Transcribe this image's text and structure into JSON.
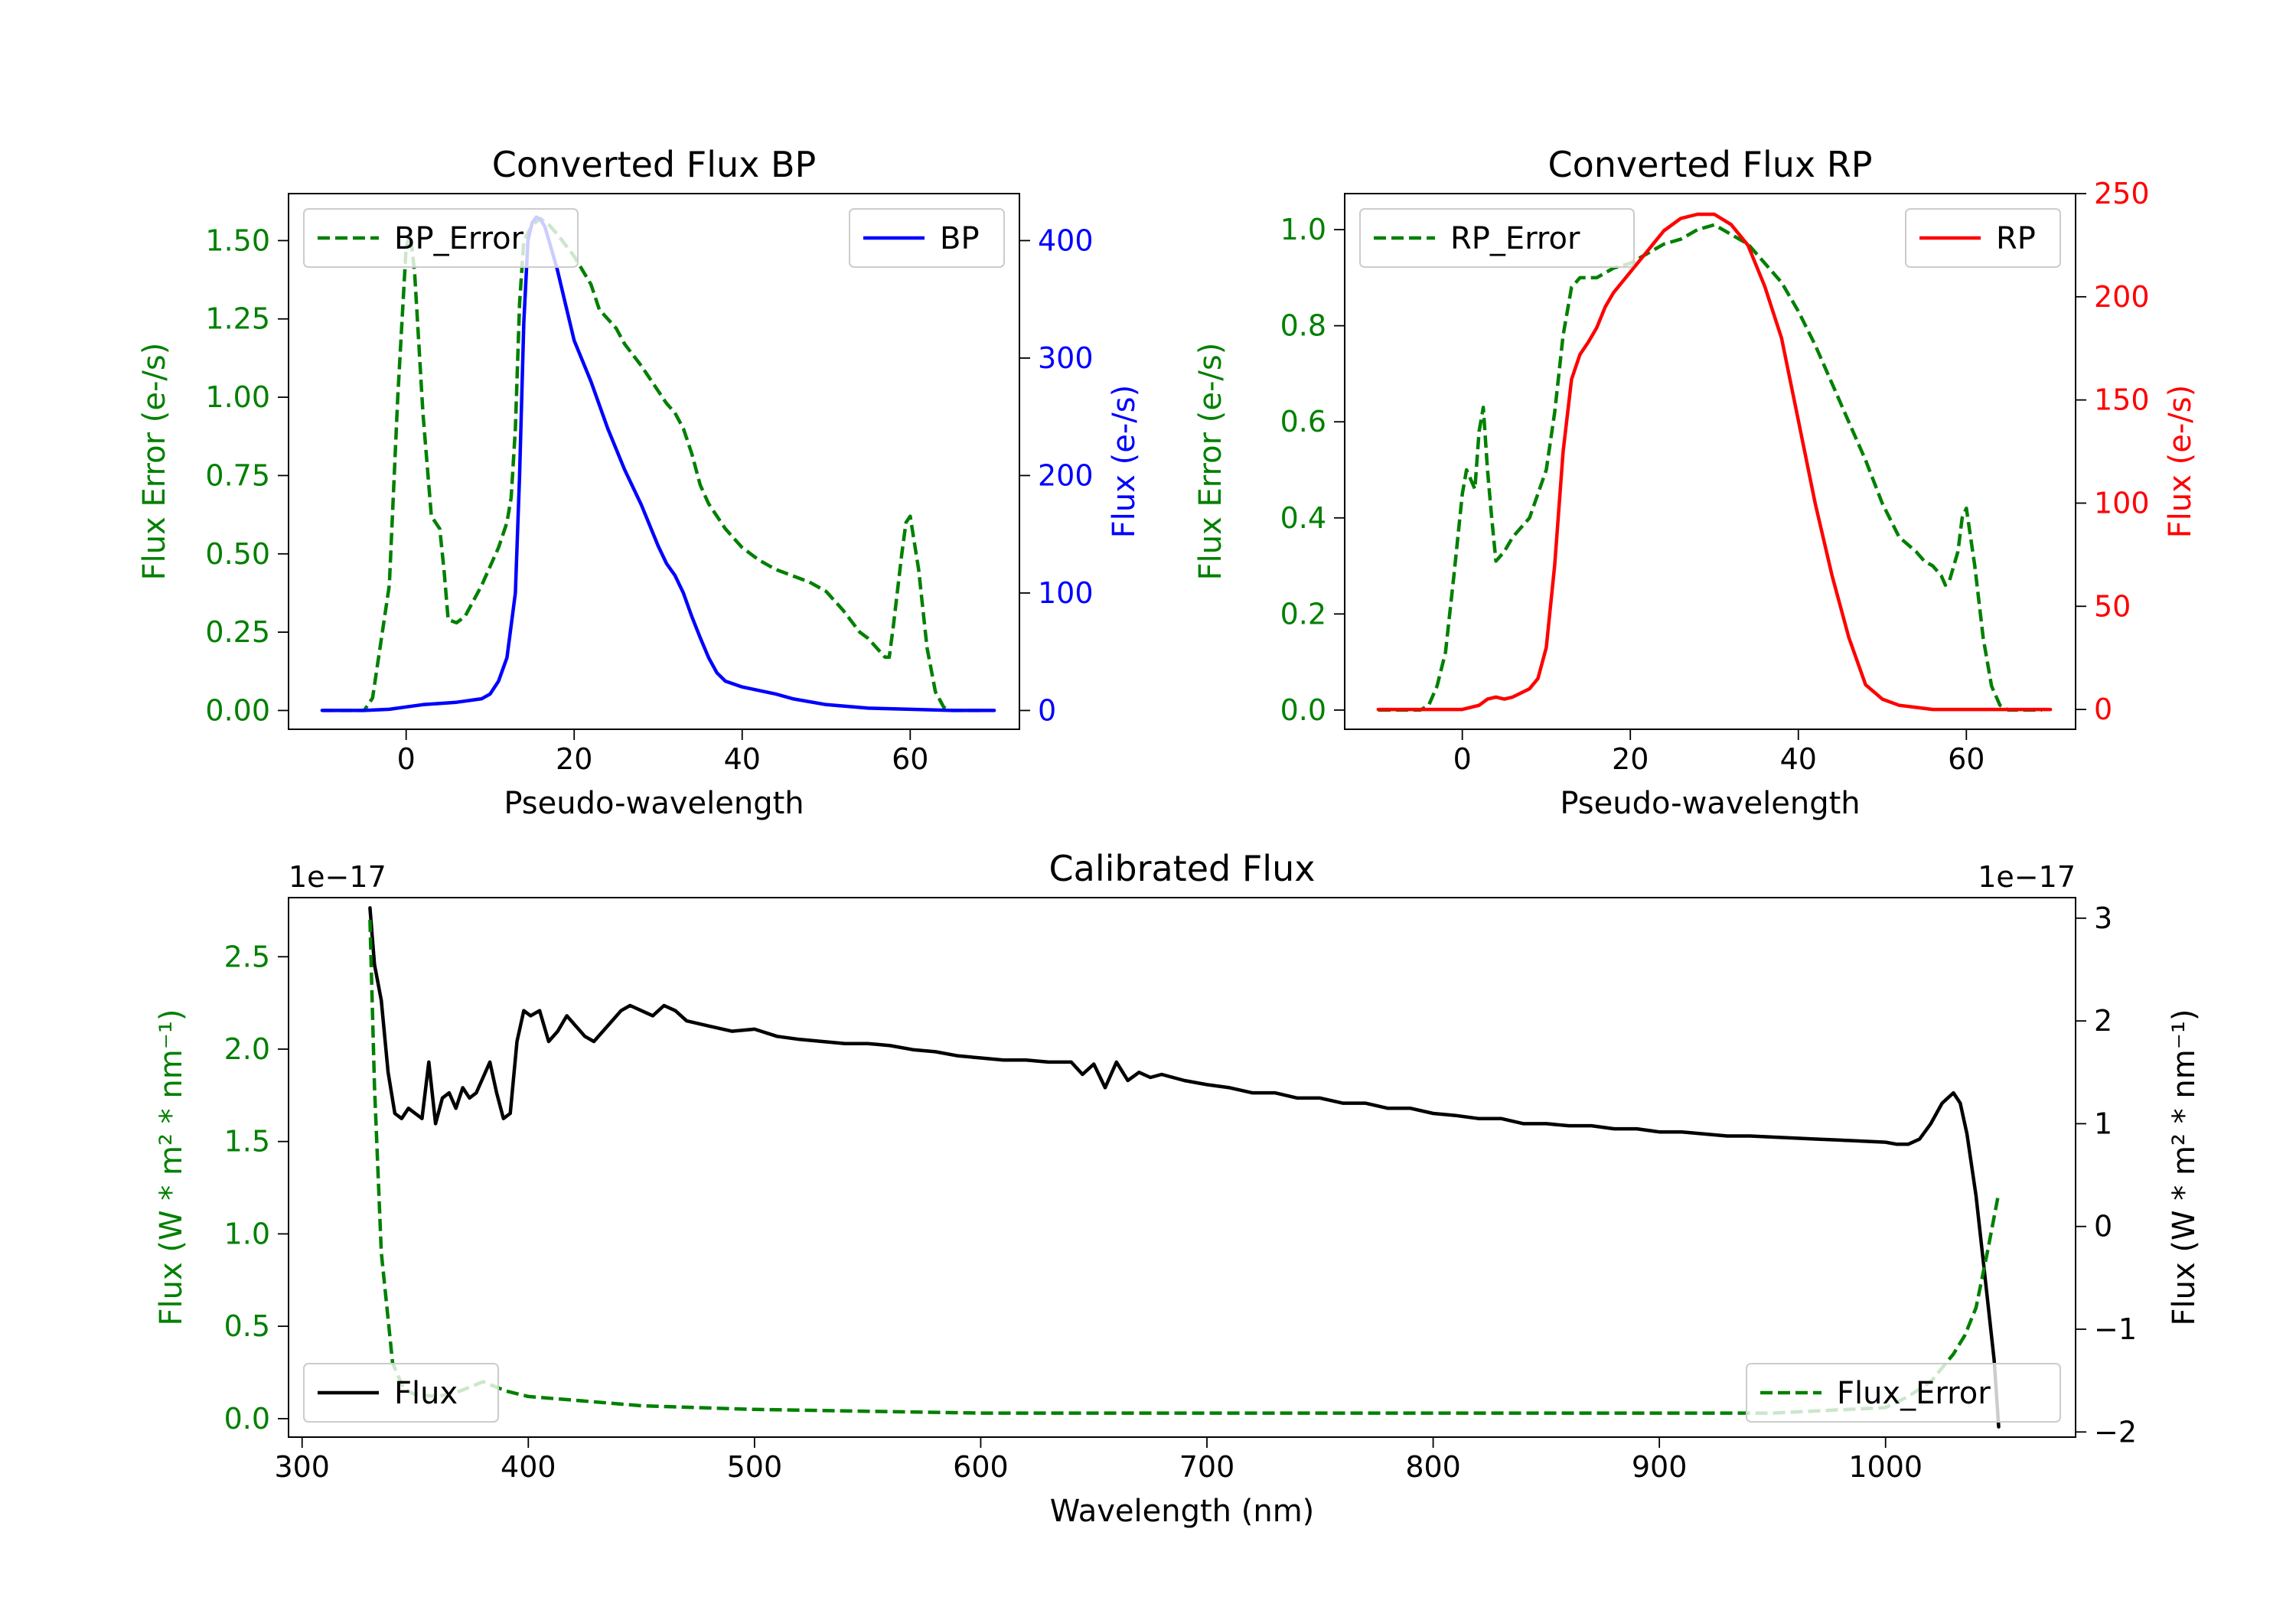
{
  "chart_data": [
    {
      "type": "line",
      "id": "bp",
      "title": "Converted Flux BP",
      "xlabel": "Pseudo-wavelength",
      "xlim": [
        -14,
        73
      ],
      "xticks": [
        0,
        20,
        40,
        60
      ],
      "left_axis": {
        "label": "Flux Error (e-/s)",
        "color": "#008000",
        "lim": [
          -0.06,
          1.65
        ],
        "ticks": [
          0.0,
          0.25,
          0.5,
          0.75,
          1.0,
          1.25,
          1.5
        ],
        "tick_labels": [
          "0.00",
          "0.25",
          "0.50",
          "0.75",
          "1.00",
          "1.25",
          "1.50"
        ]
      },
      "right_axis": {
        "label": "Flux (e-/s)",
        "color": "#0000ff",
        "lim": [
          -16,
          440
        ],
        "ticks": [
          0,
          100,
          200,
          300,
          400
        ],
        "tick_labels": [
          "0",
          "100",
          "200",
          "300",
          "400"
        ]
      },
      "series": [
        {
          "name": "BP_Error",
          "axis": "left",
          "color": "#008000",
          "dashed": true,
          "legend": "top-left",
          "x": [
            -10,
            -5,
            -4,
            -2,
            -1,
            0,
            0.5,
            1,
            2,
            3,
            4,
            4.5,
            5,
            6,
            7,
            8,
            9,
            10,
            11,
            12,
            12.5,
            13,
            13.5,
            14,
            15,
            16,
            17,
            18,
            20,
            22,
            23,
            25,
            26,
            28,
            30,
            31,
            32,
            33,
            34,
            35,
            36,
            38,
            40,
            42,
            44,
            46,
            48,
            50,
            52,
            54,
            55,
            56,
            57,
            57.5,
            58,
            59,
            59.5,
            60,
            61,
            62,
            63,
            64,
            65,
            69
          ],
          "values": [
            0,
            0,
            0.04,
            0.4,
            1.0,
            1.48,
            1.52,
            1.4,
            0.95,
            0.62,
            0.58,
            0.45,
            0.29,
            0.28,
            0.3,
            0.35,
            0.4,
            0.46,
            0.52,
            0.6,
            0.68,
            0.9,
            1.3,
            1.5,
            1.55,
            1.57,
            1.55,
            1.52,
            1.45,
            1.36,
            1.28,
            1.22,
            1.17,
            1.1,
            1.02,
            0.98,
            0.95,
            0.9,
            0.82,
            0.72,
            0.66,
            0.58,
            0.52,
            0.48,
            0.45,
            0.43,
            0.41,
            0.38,
            0.32,
            0.25,
            0.23,
            0.2,
            0.17,
            0.17,
            0.27,
            0.5,
            0.6,
            0.62,
            0.45,
            0.2,
            0.06,
            0.01,
            0,
            0
          ]
        },
        {
          "name": "BP",
          "axis": "right",
          "color": "#0000ff",
          "dashed": false,
          "legend": "top-right",
          "x": [
            -10,
            -5,
            -2,
            0,
            2,
            4,
            6,
            7,
            8,
            9,
            10,
            11,
            12,
            13,
            13.5,
            14,
            14.5,
            15,
            15.5,
            16,
            16.5,
            17,
            18,
            19,
            20,
            22,
            24,
            26,
            28,
            30,
            31,
            32,
            33,
            34,
            35,
            36,
            37,
            38,
            40,
            42,
            44,
            46,
            50,
            55,
            60,
            65,
            70
          ],
          "values": [
            0,
            0,
            1,
            3,
            5,
            6,
            7,
            8,
            9,
            10,
            14,
            25,
            45,
            100,
            200,
            330,
            400,
            415,
            420,
            418,
            412,
            400,
            375,
            345,
            315,
            280,
            240,
            205,
            175,
            140,
            125,
            115,
            100,
            80,
            62,
            45,
            32,
            25,
            20,
            17,
            14,
            10,
            5,
            2,
            1,
            0,
            0
          ]
        }
      ]
    },
    {
      "type": "line",
      "id": "rp",
      "title": "Converted Flux RP",
      "xlabel": "Pseudo-wavelength",
      "xlim": [
        -14,
        73
      ],
      "xticks": [
        0,
        20,
        40,
        60
      ],
      "left_axis": {
        "label": "Flux Error (e-/s)",
        "color": "#008000",
        "lim": [
          -0.04,
          1.075
        ],
        "ticks": [
          0.0,
          0.2,
          0.4,
          0.6,
          0.8,
          1.0
        ],
        "tick_labels": [
          "0.0",
          "0.2",
          "0.4",
          "0.6",
          "0.8",
          "1.0"
        ]
      },
      "right_axis": {
        "label": "Flux (e-/s)",
        "color": "#ff0000",
        "lim": [
          -9.6,
          250
        ],
        "ticks": [
          0,
          50,
          100,
          150,
          200,
          250
        ],
        "tick_labels": [
          "0",
          "50",
          "100",
          "150",
          "200",
          "250"
        ]
      },
      "series": [
        {
          "name": "RP_Error",
          "axis": "left",
          "color": "#008000",
          "dashed": true,
          "legend": "top-left",
          "x": [
            -10,
            -5,
            -4,
            -3,
            -2,
            -1,
            0,
            0.5,
            1,
            1.5,
            2,
            2.5,
            3,
            3.5,
            4,
            5,
            6,
            8,
            10,
            11,
            12,
            13,
            14,
            16,
            18,
            20,
            22,
            24,
            26,
            28,
            30,
            31,
            32,
            34,
            36,
            38,
            40,
            42,
            44,
            46,
            48,
            50,
            52,
            54,
            55,
            56,
            57,
            57.5,
            58,
            59,
            59.5,
            60,
            61,
            62,
            63,
            64,
            65,
            69
          ],
          "values": [
            0,
            0,
            0.01,
            0.05,
            0.12,
            0.28,
            0.45,
            0.5,
            0.48,
            0.46,
            0.58,
            0.63,
            0.5,
            0.4,
            0.31,
            0.33,
            0.36,
            0.4,
            0.5,
            0.62,
            0.78,
            0.88,
            0.9,
            0.9,
            0.92,
            0.93,
            0.95,
            0.97,
            0.98,
            1.0,
            1.01,
            1.0,
            0.99,
            0.97,
            0.93,
            0.89,
            0.83,
            0.76,
            0.68,
            0.6,
            0.52,
            0.43,
            0.36,
            0.33,
            0.31,
            0.3,
            0.28,
            0.26,
            0.27,
            0.33,
            0.4,
            0.42,
            0.3,
            0.15,
            0.05,
            0.01,
            0,
            0
          ]
        },
        {
          "name": "RP",
          "axis": "right",
          "color": "#ff0000",
          "dashed": false,
          "legend": "top-right",
          "x": [
            -10,
            -5,
            -2,
            0,
            2,
            3,
            4,
            5,
            6,
            7,
            8,
            9,
            10,
            11,
            12,
            13,
            14,
            15,
            16,
            17,
            18,
            20,
            22,
            24,
            26,
            28,
            30,
            32,
            34,
            36,
            38,
            40,
            42,
            44,
            46,
            48,
            50,
            52,
            54,
            56,
            58,
            60,
            65,
            70
          ],
          "values": [
            0,
            0,
            0,
            0,
            2,
            5,
            6,
            5,
            6,
            8,
            10,
            15,
            30,
            70,
            125,
            160,
            172,
            178,
            185,
            195,
            202,
            212,
            222,
            232,
            238,
            240,
            240,
            235,
            225,
            205,
            180,
            140,
            100,
            65,
            35,
            12,
            5,
            2,
            1,
            0,
            0,
            0,
            0,
            0
          ]
        }
      ]
    },
    {
      "type": "line",
      "id": "cal",
      "title": "Calibrated Flux",
      "xlabel": "Wavelength (nm)",
      "xlim": [
        294,
        1084
      ],
      "xticks": [
        300,
        400,
        500,
        600,
        700,
        800,
        900,
        1000
      ],
      "left_axis": {
        "label": "Flux (W * m² * nm⁻¹)",
        "color": "#008000",
        "lim": [
          -0.1,
          2.82
        ],
        "ticks": [
          0.0,
          0.5,
          1.0,
          1.5,
          2.0,
          2.5
        ],
        "tick_labels": [
          "0.0",
          "0.5",
          "1.0",
          "1.5",
          "2.0",
          "2.5"
        ],
        "offset_text": "1e−17"
      },
      "right_axis": {
        "label": "Flux (W * m² * nm⁻¹)",
        "color": "#000000",
        "lim": [
          -2.05,
          3.2
        ],
        "ticks": [
          -2,
          -1,
          0,
          1,
          2,
          3
        ],
        "tick_labels": [
          "−2",
          "−1",
          "0",
          "1",
          "2",
          "3"
        ],
        "offset_text": "1e−17"
      },
      "series": [
        {
          "name": "Flux",
          "axis": "right",
          "color": "#000000",
          "dashed": false,
          "legend": "bottom-left",
          "x": [
            330,
            332,
            335,
            338,
            341,
            344,
            347,
            350,
            353,
            356,
            359,
            362,
            365,
            368,
            371,
            374,
            377,
            380,
            383,
            386,
            389,
            392,
            395,
            398,
            401,
            405,
            409,
            413,
            417,
            421,
            425,
            429,
            433,
            437,
            441,
            445,
            450,
            455,
            460,
            465,
            470,
            480,
            490,
            500,
            510,
            520,
            530,
            540,
            550,
            560,
            570,
            580,
            590,
            600,
            610,
            620,
            630,
            640,
            645,
            650,
            655,
            660,
            665,
            670,
            675,
            680,
            690,
            700,
            710,
            720,
            730,
            740,
            750,
            760,
            770,
            780,
            790,
            800,
            810,
            820,
            830,
            840,
            850,
            860,
            870,
            880,
            890,
            900,
            910,
            920,
            930,
            940,
            950,
            960,
            970,
            980,
            990,
            1000,
            1005,
            1010,
            1015,
            1020,
            1025,
            1030,
            1033,
            1036,
            1040,
            1044,
            1048,
            1050
          ],
          "values": [
            3.1,
            2.55,
            2.2,
            1.5,
            1.1,
            1.05,
            1.15,
            1.1,
            1.05,
            1.6,
            1.0,
            1.25,
            1.3,
            1.15,
            1.35,
            1.25,
            1.3,
            1.45,
            1.6,
            1.3,
            1.05,
            1.1,
            1.8,
            2.1,
            2.05,
            2.1,
            1.8,
            1.9,
            2.05,
            1.95,
            1.85,
            1.8,
            1.9,
            2.0,
            2.1,
            2.15,
            2.1,
            2.05,
            2.15,
            2.1,
            2.0,
            1.95,
            1.9,
            1.92,
            1.85,
            1.82,
            1.8,
            1.78,
            1.78,
            1.76,
            1.72,
            1.7,
            1.66,
            1.64,
            1.62,
            1.62,
            1.6,
            1.6,
            1.48,
            1.58,
            1.35,
            1.6,
            1.42,
            1.5,
            1.45,
            1.48,
            1.42,
            1.38,
            1.35,
            1.3,
            1.3,
            1.25,
            1.25,
            1.2,
            1.2,
            1.15,
            1.15,
            1.1,
            1.08,
            1.05,
            1.05,
            1.0,
            1.0,
            0.98,
            0.98,
            0.95,
            0.95,
            0.92,
            0.92,
            0.9,
            0.88,
            0.88,
            0.87,
            0.86,
            0.85,
            0.84,
            0.83,
            0.82,
            0.8,
            0.8,
            0.85,
            1.0,
            1.2,
            1.3,
            1.2,
            0.9,
            0.3,
            -0.5,
            -1.3,
            -1.95
          ]
        },
        {
          "name": "Flux_Error",
          "axis": "left",
          "color": "#008000",
          "dashed": true,
          "legend": "bottom-right",
          "x": [
            330,
            332,
            335,
            340,
            345,
            350,
            360,
            370,
            380,
            390,
            400,
            420,
            450,
            500,
            550,
            600,
            650,
            700,
            750,
            800,
            850,
            900,
            950,
            1000,
            1010,
            1020,
            1030,
            1035,
            1040,
            1045,
            1050
          ],
          "values": [
            2.7,
            1.8,
            0.9,
            0.3,
            0.16,
            0.13,
            0.12,
            0.15,
            0.2,
            0.15,
            0.12,
            0.1,
            0.07,
            0.05,
            0.04,
            0.03,
            0.03,
            0.03,
            0.03,
            0.03,
            0.03,
            0.03,
            0.03,
            0.06,
            0.12,
            0.2,
            0.35,
            0.45,
            0.6,
            0.9,
            1.22
          ]
        }
      ]
    }
  ]
}
